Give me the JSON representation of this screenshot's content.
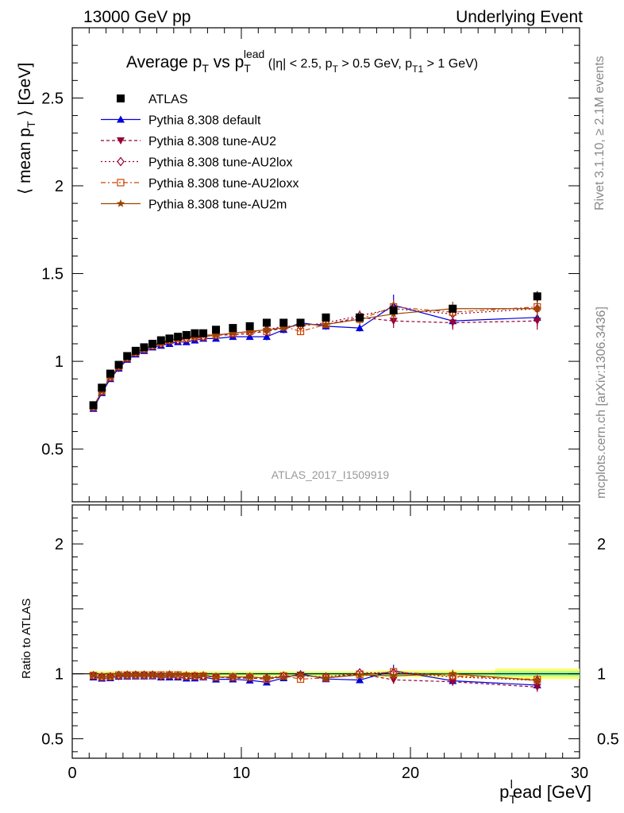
{
  "header": {
    "energy_label": "13000 GeV pp",
    "process_label": "Underlying Event"
  },
  "title": {
    "main": "Average p",
    "main_sub": "T",
    "vs": " vs p",
    "vs_sub": "T",
    "vs_sup": "lead",
    "cuts_a": " (|η| < 2.5, p",
    "cuts_a_sub": "T",
    "cuts_b": " > 0.5 GeV, p",
    "cuts_b_sub": "T1",
    "cuts_c": " > 1 GeV)"
  },
  "side_labels": {
    "rivet": "Rivet 3.1.10, ≥ 2.1M events",
    "mcplots": "mcplots.cern.ch [arXiv:1306.3436]"
  },
  "analysis_id": "ATLAS_2017_I1509919",
  "colors": {
    "data": "#000000",
    "default": "#0000dd",
    "au2": "#990033",
    "au2lox": "#990033",
    "au2loxx": "#cc4400",
    "au2m": "#994400",
    "band_outer": "#ffff66",
    "band_inner": "#99ff99"
  },
  "chart_data": [
    {
      "type": "scatter",
      "panel": "main",
      "ylabel_left": "⟨ mean p",
      "ylabel_sub": "T",
      "ylabel_right": " ⟩ [GeV]",
      "xlim": [
        0,
        30
      ],
      "ylim": [
        0.2,
        2.9
      ],
      "y_ticks": [
        0.5,
        1,
        1.5,
        2,
        2.5
      ],
      "y_tick_labels": [
        "0.5",
        "1",
        "1.5",
        "2",
        "2.5"
      ],
      "legend_position": "top-left",
      "series": [
        {
          "name": "ATLAS",
          "key": "data",
          "marker": "square",
          "x": [
            1.25,
            1.75,
            2.25,
            2.75,
            3.25,
            3.75,
            4.25,
            4.75,
            5.25,
            5.75,
            6.25,
            6.75,
            7.25,
            7.75,
            8.5,
            9.5,
            10.5,
            11.5,
            12.5,
            13.5,
            15,
            17,
            19,
            22.5,
            27.5
          ],
          "y": [
            0.75,
            0.85,
            0.93,
            0.98,
            1.03,
            1.06,
            1.08,
            1.1,
            1.12,
            1.13,
            1.14,
            1.15,
            1.16,
            1.16,
            1.18,
            1.19,
            1.2,
            1.22,
            1.22,
            1.22,
            1.25,
            1.25,
            1.29,
            1.3,
            1.37
          ],
          "err": [
            0.01,
            0.01,
            0.01,
            0.01,
            0.01,
            0.01,
            0.01,
            0.01,
            0.01,
            0.01,
            0.01,
            0.01,
            0.01,
            0.01,
            0.01,
            0.01,
            0.01,
            0.01,
            0.01,
            0.01,
            0.01,
            0.01,
            0.02,
            0.02,
            0.03
          ]
        },
        {
          "name": "Pythia 8.308 default",
          "key": "default",
          "marker": "triangle-up",
          "dash": "",
          "x": [
            1.25,
            1.75,
            2.25,
            2.75,
            3.25,
            3.75,
            4.25,
            4.75,
            5.25,
            5.75,
            6.25,
            6.75,
            7.25,
            7.75,
            8.5,
            9.5,
            10.5,
            11.5,
            12.5,
            13.5,
            15,
            17,
            19,
            22.5,
            27.5
          ],
          "y": [
            0.73,
            0.82,
            0.9,
            0.96,
            1.01,
            1.04,
            1.06,
            1.08,
            1.09,
            1.1,
            1.11,
            1.11,
            1.12,
            1.13,
            1.13,
            1.14,
            1.14,
            1.14,
            1.18,
            1.22,
            1.2,
            1.19,
            1.32,
            1.23,
            1.25
          ],
          "err": [
            0.01,
            0.01,
            0.01,
            0.01,
            0.01,
            0.01,
            0.01,
            0.01,
            0.01,
            0.01,
            0.01,
            0.01,
            0.01,
            0.01,
            0.01,
            0.01,
            0.01,
            0.02,
            0.02,
            0.02,
            0.02,
            0.02,
            0.06,
            0.04,
            0.05
          ]
        },
        {
          "name": "Pythia 8.308 tune-AU2",
          "key": "au2",
          "marker": "triangle-down",
          "dash": "4,3",
          "x": [
            1.25,
            1.75,
            2.25,
            2.75,
            3.25,
            3.75,
            4.25,
            4.75,
            5.25,
            5.75,
            6.25,
            6.75,
            7.25,
            7.75,
            8.5,
            9.5,
            10.5,
            11.5,
            12.5,
            13.5,
            15,
            17,
            19,
            22.5,
            27.5
          ],
          "y": [
            0.74,
            0.83,
            0.91,
            0.96,
            1.02,
            1.05,
            1.07,
            1.09,
            1.1,
            1.11,
            1.12,
            1.13,
            1.13,
            1.14,
            1.15,
            1.15,
            1.16,
            1.17,
            1.19,
            1.21,
            1.21,
            1.25,
            1.23,
            1.22,
            1.23
          ],
          "err": [
            0.01,
            0.01,
            0.01,
            0.01,
            0.01,
            0.01,
            0.01,
            0.01,
            0.01,
            0.01,
            0.01,
            0.01,
            0.01,
            0.01,
            0.01,
            0.01,
            0.01,
            0.02,
            0.02,
            0.02,
            0.02,
            0.03,
            0.04,
            0.04,
            0.05
          ]
        },
        {
          "name": "Pythia 8.308 tune-AU2lox",
          "key": "au2lox",
          "marker": "diamond-open",
          "dash": "2,3",
          "x": [
            1.25,
            1.75,
            2.25,
            2.75,
            3.25,
            3.75,
            4.25,
            4.75,
            5.25,
            5.75,
            6.25,
            6.75,
            7.25,
            7.75,
            8.5,
            9.5,
            10.5,
            11.5,
            12.5,
            13.5,
            15,
            17,
            19,
            22.5,
            27.5
          ],
          "y": [
            0.74,
            0.83,
            0.91,
            0.97,
            1.02,
            1.05,
            1.07,
            1.09,
            1.1,
            1.12,
            1.12,
            1.13,
            1.14,
            1.14,
            1.15,
            1.16,
            1.17,
            1.18,
            1.2,
            1.2,
            1.22,
            1.26,
            1.3,
            1.27,
            1.3
          ],
          "err": [
            0.01,
            0.01,
            0.01,
            0.01,
            0.01,
            0.01,
            0.01,
            0.01,
            0.01,
            0.01,
            0.01,
            0.01,
            0.01,
            0.01,
            0.01,
            0.01,
            0.01,
            0.02,
            0.02,
            0.02,
            0.02,
            0.03,
            0.04,
            0.04,
            0.05
          ]
        },
        {
          "name": "Pythia 8.308 tune-AU2loxx",
          "key": "au2loxx",
          "marker": "square-open",
          "dash": "6,3,2,3",
          "x": [
            1.25,
            1.75,
            2.25,
            2.75,
            3.25,
            3.75,
            4.25,
            4.75,
            5.25,
            5.75,
            6.25,
            6.75,
            7.25,
            7.75,
            8.5,
            9.5,
            10.5,
            11.5,
            12.5,
            13.5,
            15,
            17,
            19,
            22.5,
            27.5
          ],
          "y": [
            0.74,
            0.83,
            0.91,
            0.97,
            1.02,
            1.05,
            1.07,
            1.09,
            1.11,
            1.12,
            1.13,
            1.13,
            1.14,
            1.14,
            1.15,
            1.16,
            1.17,
            1.17,
            1.2,
            1.17,
            1.21,
            1.24,
            1.31,
            1.28,
            1.31
          ],
          "err": [
            0.01,
            0.01,
            0.01,
            0.01,
            0.01,
            0.01,
            0.01,
            0.01,
            0.01,
            0.01,
            0.01,
            0.01,
            0.01,
            0.01,
            0.01,
            0.01,
            0.01,
            0.02,
            0.02,
            0.02,
            0.02,
            0.03,
            0.04,
            0.04,
            0.05
          ]
        },
        {
          "name": "Pythia 8.308 tune-AU2m",
          "key": "au2m",
          "marker": "star",
          "dash": "",
          "x": [
            1.25,
            1.75,
            2.25,
            2.75,
            3.25,
            3.75,
            4.25,
            4.75,
            5.25,
            5.75,
            6.25,
            6.75,
            7.25,
            7.75,
            8.5,
            9.5,
            10.5,
            11.5,
            12.5,
            13.5,
            15,
            17,
            19,
            22.5,
            27.5
          ],
          "y": [
            0.74,
            0.83,
            0.91,
            0.97,
            1.02,
            1.05,
            1.07,
            1.09,
            1.1,
            1.12,
            1.13,
            1.14,
            1.14,
            1.15,
            1.15,
            1.16,
            1.17,
            1.18,
            1.19,
            1.21,
            1.21,
            1.24,
            1.27,
            1.3,
            1.3
          ],
          "err": [
            0.01,
            0.01,
            0.01,
            0.01,
            0.01,
            0.01,
            0.01,
            0.01,
            0.01,
            0.01,
            0.01,
            0.01,
            0.01,
            0.01,
            0.01,
            0.01,
            0.01,
            0.02,
            0.02,
            0.02,
            0.02,
            0.03,
            0.04,
            0.04,
            0.05
          ]
        }
      ]
    },
    {
      "type": "scatter",
      "panel": "ratio",
      "ylabel": "Ratio to ATLAS",
      "xlabel_main": "p",
      "xlabel_sub": "T",
      "xlabel_sup": "l",
      "xlabel_rest": "ead [GeV]",
      "xlim": [
        0,
        30
      ],
      "ylim": [
        0.35,
        2.3
      ],
      "x_ticks": [
        0,
        10,
        20,
        30
      ],
      "x_tick_labels": [
        "0",
        "10",
        "20",
        "30"
      ],
      "y_ticks": [
        0.5,
        1,
        2
      ],
      "y_tick_labels": [
        "0.5",
        "1",
        "2"
      ],
      "reference_line": 1,
      "data_band": {
        "x_edges": [
          1,
          1.5,
          2,
          2.5,
          3,
          3.5,
          4,
          4.5,
          5,
          5.5,
          6,
          6.5,
          7,
          7.5,
          8,
          9,
          10,
          11,
          12,
          13,
          14,
          16,
          18,
          20,
          25,
          30
        ],
        "outer": [
          0.02,
          0.02,
          0.02,
          0.02,
          0.02,
          0.02,
          0.02,
          0.02,
          0.02,
          0.02,
          0.02,
          0.02,
          0.02,
          0.02,
          0.02,
          0.02,
          0.02,
          0.02,
          0.02,
          0.02,
          0.02,
          0.02,
          0.025,
          0.025,
          0.04
        ],
        "inner": [
          0.01,
          0.01,
          0.01,
          0.01,
          0.01,
          0.01,
          0.01,
          0.01,
          0.01,
          0.01,
          0.01,
          0.01,
          0.01,
          0.01,
          0.01,
          0.01,
          0.01,
          0.01,
          0.01,
          0.01,
          0.01,
          0.01,
          0.012,
          0.012,
          0.02
        ]
      }
    }
  ]
}
